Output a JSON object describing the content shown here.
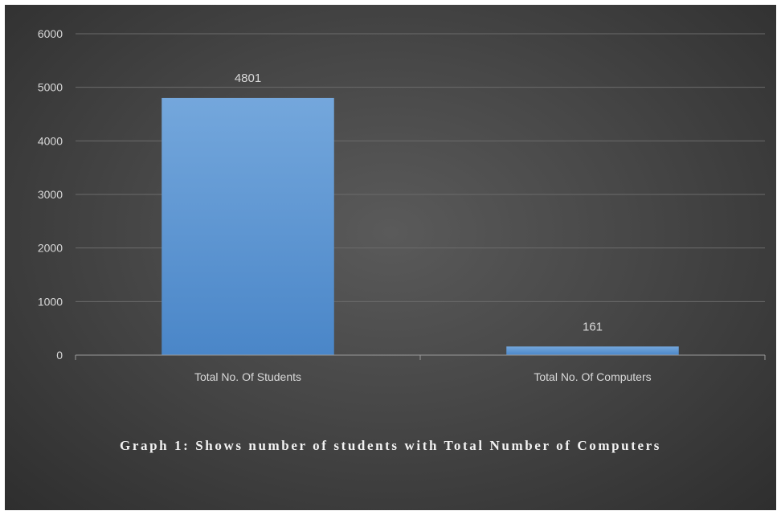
{
  "caption": "Graph 1: Shows number of students with Total Number of Computers",
  "chart_data": {
    "type": "bar",
    "categories": [
      "Total No. Of Students",
      "Total No. Of Computers"
    ],
    "values": [
      4801,
      161
    ],
    "data_labels": [
      "4801",
      "161"
    ],
    "yticks": [
      "0",
      "1000",
      "2000",
      "3000",
      "4000",
      "5000",
      "6000"
    ],
    "ylim": [
      0,
      6000
    ],
    "grid": true,
    "legend": "none",
    "title": "",
    "xlabel": "",
    "ylabel": ""
  },
  "colors": {
    "bar_top": "#74a7dc",
    "bar_bottom": "#4a86c8",
    "gridline": "#6b6b6b",
    "axis": "#9a9a9a",
    "text": "#d9d9d9"
  }
}
